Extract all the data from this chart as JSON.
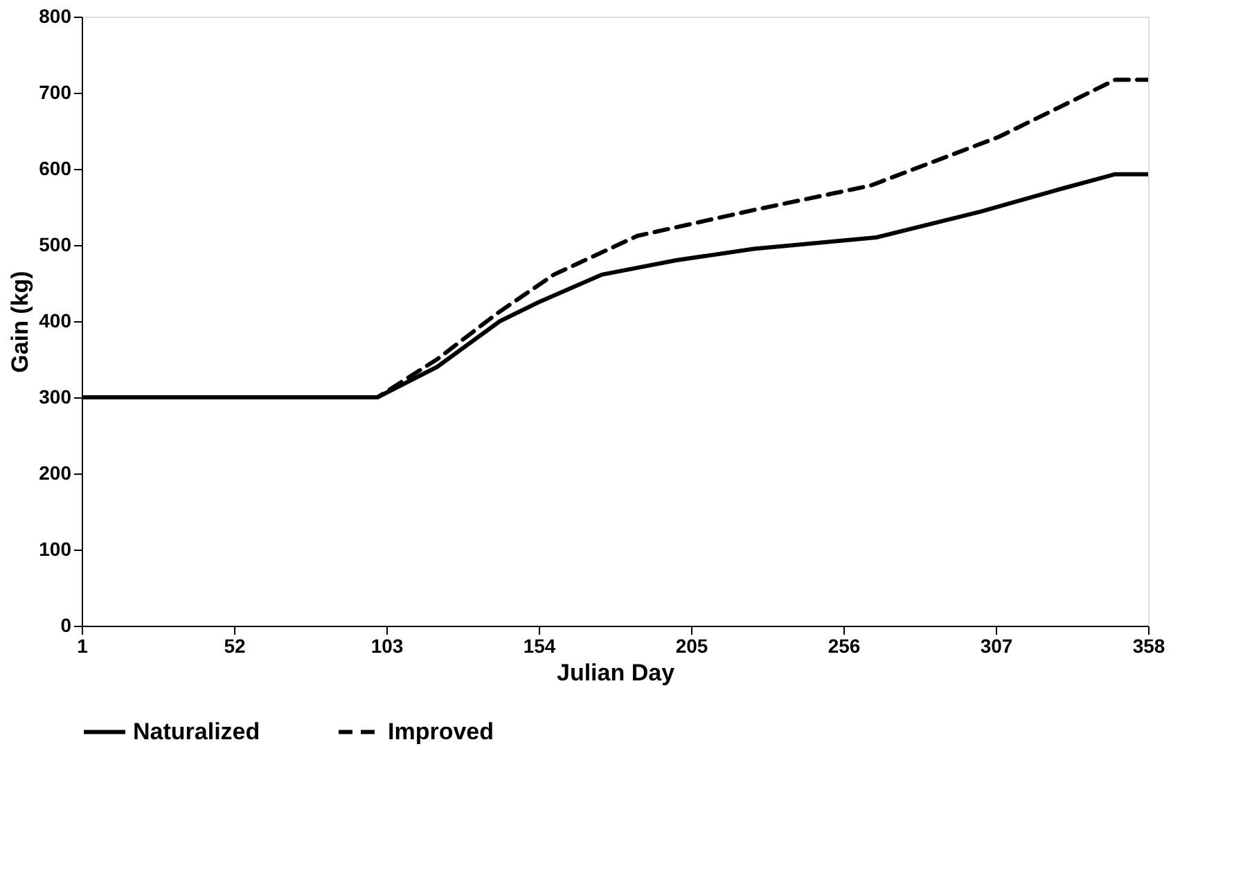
{
  "chart_data": {
    "type": "line",
    "xlabel": "Julian Day",
    "ylabel": "Gain (kg)",
    "xlim": [
      1,
      358
    ],
    "xticks": [
      1,
      52,
      103,
      154,
      205,
      256,
      307,
      358
    ],
    "ylim": [
      0,
      800
    ],
    "yticks": [
      0,
      100,
      200,
      300,
      400,
      500,
      600,
      700,
      800
    ],
    "legend": "bottom",
    "series": [
      {
        "name": "Naturalized",
        "color": "#000000",
        "line_style": "solid",
        "x": [
          1,
          100,
          120,
          141,
          154,
          175,
          200,
          226,
          267,
          302,
          330,
          347,
          358
        ],
        "values": [
          300,
          300,
          340,
          400,
          425,
          461,
          480,
          495,
          510,
          544,
          575,
          593,
          593
        ]
      },
      {
        "name": "Improved",
        "color": "#000000",
        "line_style": "dashed",
        "x": [
          1,
          100,
          120,
          140,
          159,
          187,
          226,
          265,
          308,
          347,
          358
        ],
        "values": [
          300,
          300,
          350,
          410,
          461,
          512,
          546,
          578,
          642,
          717,
          717
        ]
      }
    ]
  }
}
